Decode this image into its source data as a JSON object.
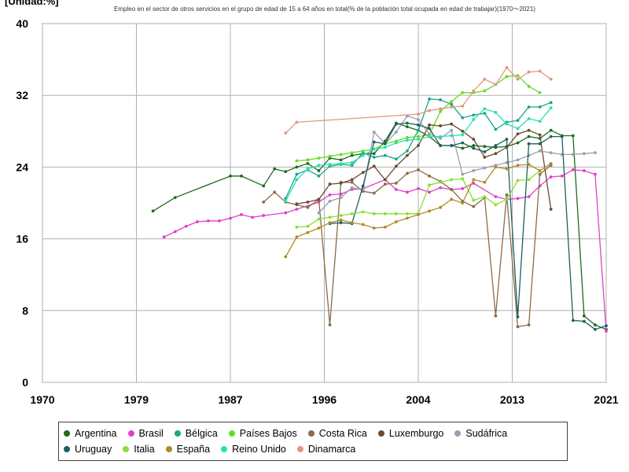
{
  "chart_data": {
    "type": "line",
    "title": "Empleo en el sector de otros servicios en el grupo de edad de 15 a 64 años en total(% de la población total ocupada en edad de trabajar)(1970〜2021)",
    "unit_label": "[Unidad:%]",
    "xlim": [
      1970,
      2021
    ],
    "ylim": [
      0,
      40
    ],
    "xticks": [
      "1970",
      "1979",
      "1987",
      "1996",
      "2004",
      "2013",
      "2021"
    ],
    "xtick_values": [
      1970,
      1978.5,
      1987,
      1995.5,
      2004,
      2012.5,
      2021
    ],
    "yticks": [
      0,
      8,
      16,
      24,
      32,
      40
    ],
    "grid": true,
    "legend_position": "bottom",
    "series": [
      {
        "name": "Argentina",
        "color": "#1f6b1f",
        "x": [
          1980,
          1982,
          1987,
          1988,
          1990,
          1991,
          1992,
          1993,
          1994,
          1995,
          1996,
          1997,
          1998,
          1999,
          2000,
          2001,
          2002,
          2003,
          2004,
          2005,
          2006,
          2007,
          2008,
          2009,
          2010,
          2011,
          2012,
          2013,
          2014,
          2015,
          2016,
          2017,
          2018,
          2019,
          2020,
          2021
        ],
        "y": [
          19.1,
          20.6,
          23.0,
          23.0,
          21.9,
          23.8,
          23.5,
          24.0,
          24.4,
          23.6,
          25.0,
          24.8,
          25.3,
          25.5,
          25.5,
          26.9,
          28.9,
          28.5,
          28.1,
          27.4,
          26.4,
          26.4,
          26.1,
          26.4,
          26.3,
          26.2,
          26.3,
          26.7,
          27.4,
          27.2,
          28.1,
          27.5,
          27.5,
          7.4,
          6.4,
          5.9
        ]
      },
      {
        "name": "Brasil",
        "color": "#e040c8",
        "x": [
          1981,
          1982,
          1983,
          1984,
          1985,
          1986,
          1987,
          1988,
          1989,
          1990,
          1992,
          1993,
          1995,
          1996,
          1997,
          1998,
          1999,
          2001,
          2002,
          2003,
          2004,
          2005,
          2006,
          2007,
          2008,
          2009,
          2011,
          2012,
          2013,
          2014,
          2015,
          2016,
          2017,
          2018,
          2019,
          2020,
          2021
        ],
        "y": [
          16.2,
          16.8,
          17.4,
          17.9,
          18.0,
          18.0,
          18.3,
          18.7,
          18.4,
          18.6,
          18.9,
          19.3,
          20.1,
          20.9,
          21.0,
          21.5,
          21.6,
          22.6,
          21.5,
          21.2,
          21.6,
          21.2,
          21.7,
          21.5,
          21.6,
          22.2,
          20.7,
          20.4,
          20.5,
          20.7,
          21.9,
          22.9,
          23.0,
          23.7,
          23.6,
          23.2,
          5.7
        ]
      },
      {
        "name": "Bélgica",
        "color": "#1aa68a",
        "x": [
          1992,
          1993,
          1994,
          1995,
          1996,
          1997,
          1998,
          1999,
          2000,
          2001,
          2002,
          2003,
          2004,
          2005,
          2006,
          2007,
          2008,
          2009,
          2010,
          2011,
          2012,
          2013,
          2014,
          2015,
          2016
        ],
        "y": [
          20.5,
          23.2,
          23.7,
          23.0,
          24.1,
          24.3,
          24.2,
          25.6,
          25.1,
          25.3,
          24.9,
          25.8,
          28.1,
          31.6,
          31.5,
          31.0,
          29.5,
          29.8,
          30.0,
          28.2,
          29.0,
          29.2,
          30.7,
          30.7,
          31.2
        ]
      },
      {
        "name": "Países Bajos",
        "color": "#66dd22",
        "x": [
          1993,
          1994,
          1995,
          1996,
          1997,
          1998,
          1999,
          2000,
          2001,
          2002,
          2003,
          2004,
          2005,
          2006,
          2007,
          2008,
          2009,
          2010,
          2011,
          2012,
          2013,
          2014,
          2015
        ],
        "y": [
          24.7,
          24.8,
          25.0,
          25.2,
          25.4,
          25.6,
          25.8,
          26.0,
          26.6,
          26.9,
          27.3,
          27.4,
          27.6,
          30.2,
          31.3,
          32.3,
          32.3,
          32.5,
          33.2,
          34.1,
          34.2,
          33.0,
          32.3
        ]
      },
      {
        "name": "Costa Rica",
        "color": "#8b6a4a",
        "x": [
          1990,
          1991,
          1992,
          1993,
          1994,
          1995,
          1996,
          1997,
          1998,
          1999,
          2000,
          2001,
          2002,
          2003,
          2004,
          2005,
          2006,
          2007,
          2008,
          2009,
          2010,
          2011,
          2012,
          2013,
          2014,
          2015,
          2016
        ],
        "y": [
          20.1,
          21.2,
          20.1,
          19.8,
          19.5,
          20.4,
          6.4,
          22.3,
          22.3,
          21.3,
          21.1,
          22.1,
          22.2,
          23.3,
          23.7,
          23.0,
          22.4,
          21.5,
          20.2,
          19.6,
          20.6,
          7.4,
          20.9,
          6.2,
          6.4,
          23.2,
          24.2
        ]
      },
      {
        "name": "Luxemburgo",
        "color": "#6b4a2e",
        "x": [
          1993,
          1994,
          1995,
          1996,
          1997,
          1998,
          1999,
          2000,
          2001,
          2002,
          2003,
          2004,
          2005,
          2006,
          2007,
          2008,
          2009,
          2010,
          2011,
          2012,
          2013,
          2014,
          2015,
          2016
        ],
        "y": [
          19.9,
          20.1,
          20.4,
          22.1,
          22.2,
          22.6,
          23.4,
          24.1,
          22.6,
          24.1,
          25.3,
          26.4,
          28.7,
          28.6,
          28.8,
          28.0,
          27.1,
          25.1,
          25.5,
          26.2,
          27.7,
          28.1,
          27.6,
          19.3
        ]
      },
      {
        "name": "Sudáfrica",
        "color": "#9a9eb0",
        "x": [
          1995,
          1996,
          1997,
          1998,
          1999,
          2000,
          2001,
          2002,
          2003,
          2004,
          2005,
          2006,
          2007,
          2008,
          2009,
          2010,
          2011,
          2012,
          2013,
          2014,
          2015,
          2016,
          2017,
          2018,
          2019,
          2020
        ],
        "y": [
          18.9,
          20.2,
          20.6,
          21.7,
          21.5,
          27.9,
          26.6,
          27.9,
          29.7,
          29.3,
          27.7,
          27.2,
          28.1,
          23.2,
          23.6,
          23.9,
          24.2,
          24.5,
          24.8,
          25.3,
          25.8,
          25.6,
          25.4,
          25.4,
          25.5,
          25.6
        ]
      },
      {
        "name": "Uruguay",
        "color": "#1e6060",
        "x": [
          1996,
          1997,
          1998,
          1999,
          2000,
          2001,
          2002,
          2003,
          2004,
          2005,
          2006,
          2007,
          2008,
          2009,
          2010,
          2011,
          2012,
          2013,
          2014,
          2015,
          2016,
          2017,
          2018,
          2019,
          2020,
          2021
        ],
        "y": [
          17.7,
          17.8,
          17.7,
          21.9,
          26.8,
          26.6,
          28.8,
          28.9,
          28.7,
          28.3,
          26.4,
          26.4,
          26.7,
          26.1,
          25.7,
          26.4,
          27.1,
          7.3,
          26.6,
          26.6,
          27.4,
          27.4,
          6.9,
          6.8,
          5.9,
          6.3
        ]
      },
      {
        "name": "Italia",
        "color": "#88e030",
        "x": [
          1993,
          1994,
          1995,
          1996,
          1997,
          1998,
          1999,
          2000,
          2001,
          2002,
          2003,
          2004,
          2005,
          2006,
          2007,
          2008,
          2009,
          2010,
          2011,
          2012,
          2013,
          2014,
          2015
        ],
        "y": [
          17.3,
          17.4,
          18.2,
          18.4,
          18.6,
          18.8,
          19.0,
          18.8,
          18.8,
          18.8,
          18.8,
          18.8,
          22.0,
          22.3,
          22.6,
          22.7,
          20.3,
          20.7,
          19.8,
          20.4,
          22.5,
          22.6,
          23.6
        ]
      },
      {
        "name": "España",
        "color": "#b08a2a",
        "x": [
          1992,
          1993,
          1994,
          1995,
          1996,
          1997,
          1998,
          1999,
          2000,
          2001,
          2002,
          2003,
          2004,
          2005,
          2006,
          2007,
          2008,
          2009,
          2010,
          2011,
          2012,
          2013,
          2014,
          2015,
          2016
        ],
        "y": [
          14.0,
          16.2,
          16.7,
          17.2,
          17.8,
          18.1,
          17.8,
          17.6,
          17.2,
          17.3,
          17.9,
          18.3,
          18.7,
          19.1,
          19.5,
          20.4,
          20.0,
          22.6,
          22.3,
          24.0,
          23.8,
          24.2,
          24.3,
          23.6,
          24.4
        ]
      },
      {
        "name": "Reino Unido",
        "color": "#28e0b0",
        "x": [
          1992,
          1993,
          1994,
          1995,
          1996,
          1997,
          1998,
          1999,
          2000,
          2001,
          2002,
          2003,
          2004,
          2005,
          2006,
          2007,
          2008,
          2009,
          2010,
          2011,
          2012,
          2013,
          2014,
          2015,
          2016
        ],
        "y": [
          20.2,
          22.6,
          23.8,
          24.2,
          24.3,
          24.4,
          24.5,
          25.3,
          26.0,
          26.2,
          26.7,
          27.0,
          27.1,
          27.4,
          27.4,
          27.5,
          27.6,
          29.3,
          30.5,
          30.1,
          28.8,
          28.3,
          29.4,
          29.1,
          30.6
        ]
      },
      {
        "name": "Dinamarca",
        "color": "#e09880",
        "x": [
          1992,
          1993,
          2004,
          2005,
          2006,
          2007,
          2008,
          2009,
          2010,
          2011,
          2012,
          2013,
          2014,
          2015,
          2016
        ],
        "y": [
          27.8,
          29.0,
          29.9,
          30.3,
          30.5,
          30.7,
          30.8,
          32.5,
          33.8,
          33.2,
          35.1,
          33.8,
          34.6,
          34.7,
          33.8
        ]
      }
    ]
  }
}
